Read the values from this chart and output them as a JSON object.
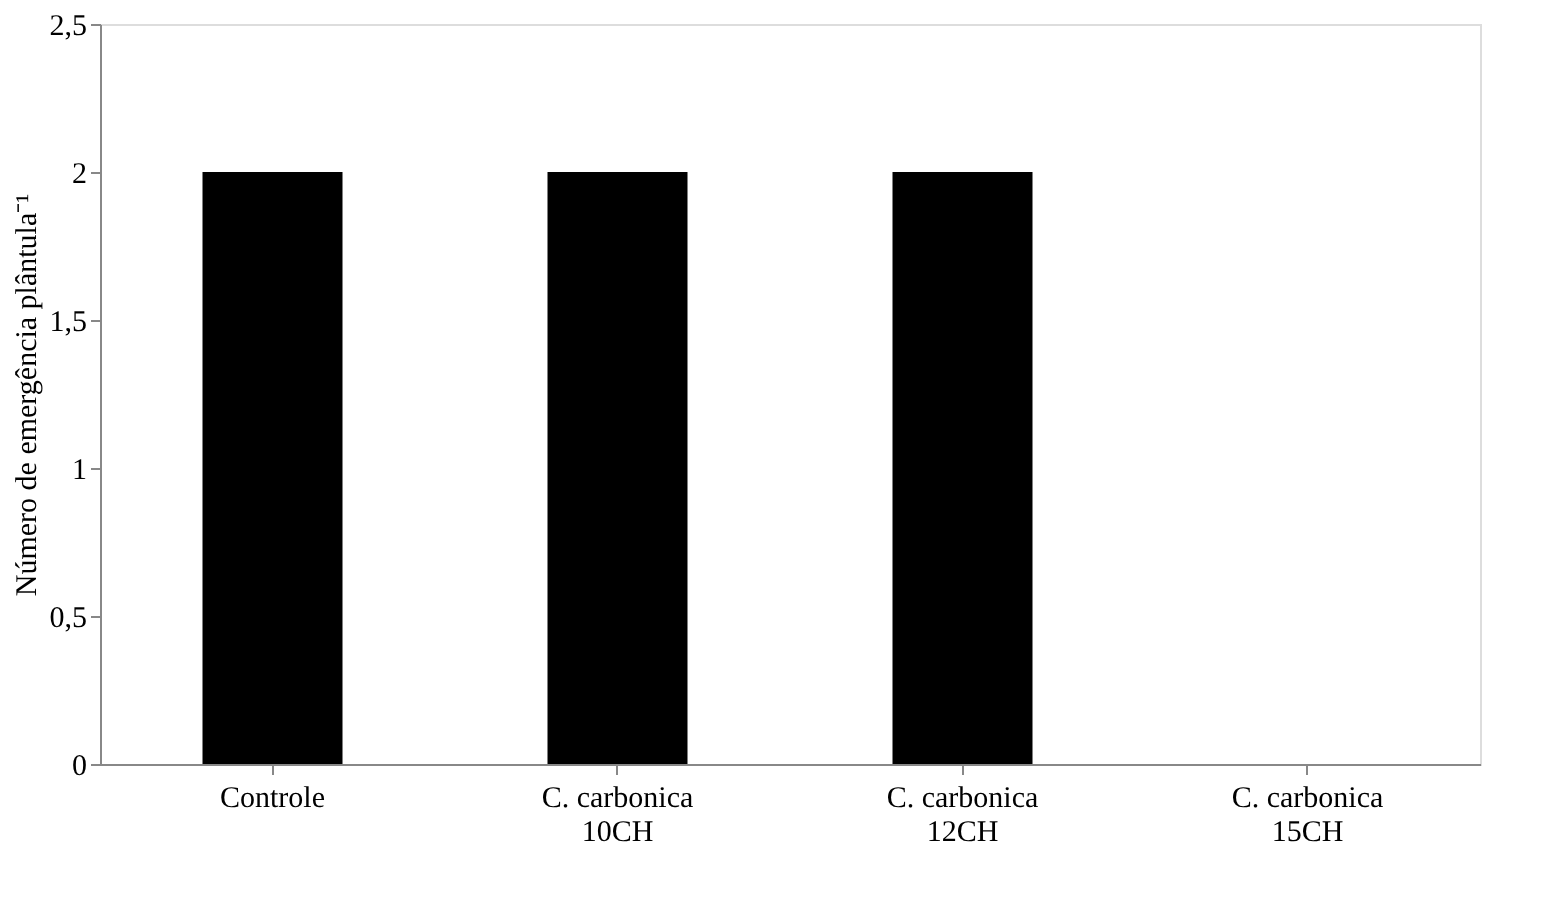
{
  "chart_data": {
    "type": "bar",
    "ylabel": "Número de emergência plântula⁻¹",
    "categories": [
      "Controle",
      "C. carbonica\n10CH",
      "C. carbonica\n12CH",
      "C. carbonica\n15CH"
    ],
    "values": [
      2,
      2,
      2,
      0
    ],
    "color": "#000000",
    "ylim": [
      0,
      2.5
    ],
    "yticks": [
      0,
      {
        "value": 0.5,
        "label": "0,5"
      },
      1,
      {
        "value": 1.5,
        "label": "1,5"
      },
      2,
      {
        "value": 2.5,
        "label": "2,5"
      }
    ],
    "grid": false
  }
}
